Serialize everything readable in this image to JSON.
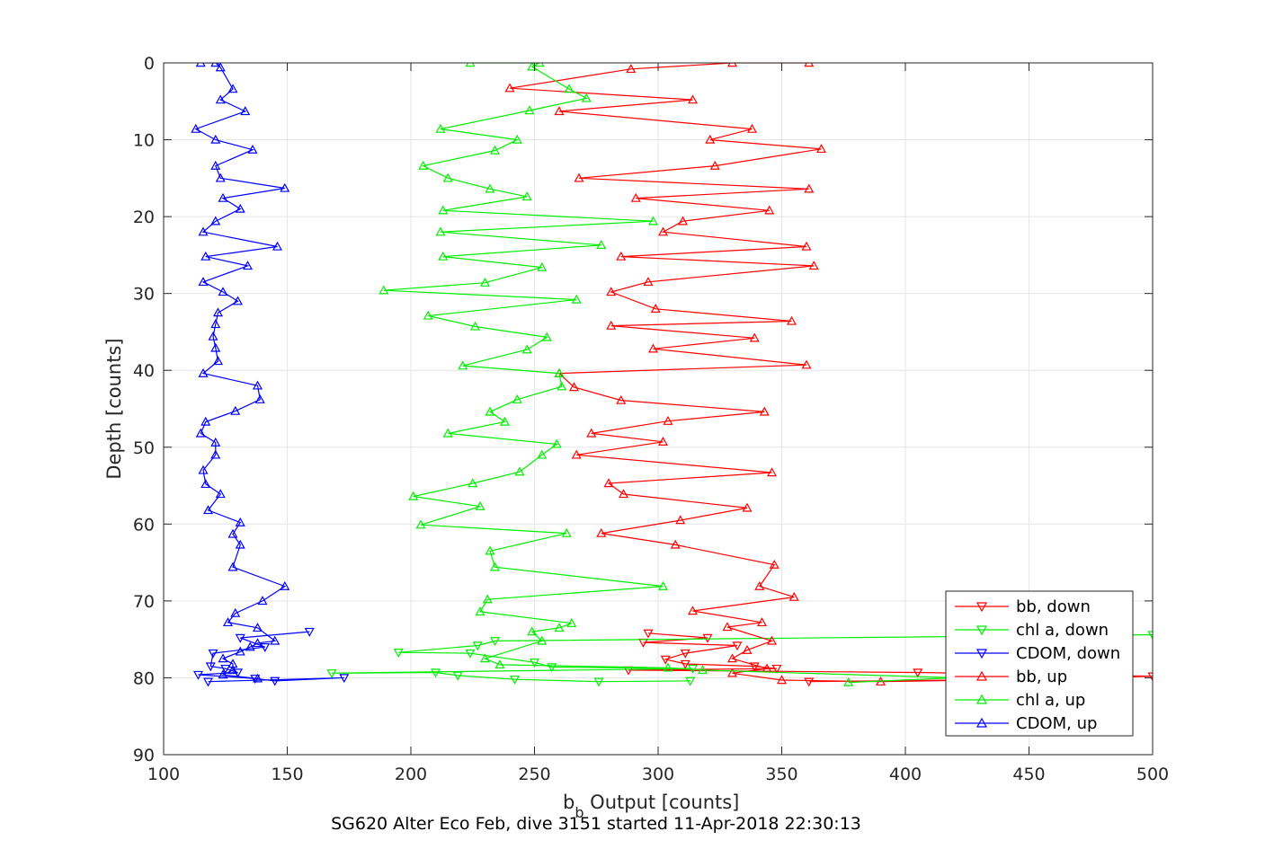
{
  "chart_data": {
    "type": "line",
    "title": "",
    "xlabel": "b",
    "xlabel_sub": "b",
    "xlabel_rest": " Output [counts]",
    "ylabel": "Depth [counts]",
    "caption": "SG620 Alter Eco Feb, dive 3151 started 11-Apr-2018 22:30:13",
    "xlim": [
      100,
      500
    ],
    "ylim": [
      0,
      90
    ],
    "y_reversed": true,
    "grid": true,
    "legend_position": "bottom-right",
    "x_ticks": [
      "100",
      "150",
      "200",
      "250",
      "300",
      "350",
      "400",
      "450",
      "500"
    ],
    "y_ticks": [
      "0",
      "10",
      "20",
      "30",
      "40",
      "50",
      "60",
      "70",
      "80",
      "90"
    ],
    "series": [
      {
        "name": "bb, down",
        "color": "#ff0000",
        "marker": "triangle-down",
        "points": [
          [
            296,
            74.2
          ],
          [
            320,
            74.8
          ],
          [
            294,
            75.4
          ],
          [
            332,
            75.8
          ],
          [
            311,
            76.8
          ],
          [
            303,
            77.6
          ],
          [
            311,
            78.2
          ],
          [
            339,
            78.5
          ],
          [
            348,
            78.8
          ],
          [
            288,
            79.0
          ],
          [
            405,
            79.3
          ],
          [
            500,
            79.8
          ],
          [
            450,
            80.2
          ],
          [
            361,
            80.5
          ]
        ]
      },
      {
        "name": "chl a, down",
        "color": "#00ee00",
        "marker": "triangle-down",
        "points": [
          [
            500,
            74.4
          ],
          [
            234,
            75.2
          ],
          [
            227,
            75.8
          ],
          [
            195,
            76.7
          ],
          [
            224,
            76.8
          ],
          [
            250,
            78.0
          ],
          [
            257,
            78.6
          ],
          [
            314,
            78.8
          ],
          [
            168,
            79.4
          ],
          [
            210,
            79.3
          ],
          [
            219,
            79.7
          ],
          [
            242,
            80.2
          ],
          [
            276,
            80.5
          ],
          [
            313,
            80.4
          ]
        ]
      },
      {
        "name": "CDOM, down",
        "color": "#0000ff",
        "marker": "triangle-down",
        "points": [
          [
            159,
            74.0
          ],
          [
            131,
            74.8
          ],
          [
            141,
            76.0
          ],
          [
            120,
            76.8
          ],
          [
            119,
            78.5
          ],
          [
            125,
            78.8
          ],
          [
            130,
            79.3
          ],
          [
            114,
            79.6
          ],
          [
            137,
            80.1
          ],
          [
            145,
            80.4
          ],
          [
            173,
            80.0
          ],
          [
            118,
            80.5
          ]
        ]
      },
      {
        "name": "bb, up",
        "color": "#ff0000",
        "marker": "triangle-up",
        "points": [
          [
            361,
            0
          ],
          [
            330,
            0
          ],
          [
            289,
            0.8
          ],
          [
            240,
            3.3
          ],
          [
            314,
            4.8
          ],
          [
            260,
            6.3
          ],
          [
            338,
            8.6
          ],
          [
            321,
            10
          ],
          [
            366,
            11.2
          ],
          [
            323,
            13.4
          ],
          [
            268,
            15
          ],
          [
            361,
            16.4
          ],
          [
            291,
            17.6
          ],
          [
            345,
            19.2
          ],
          [
            310,
            20.6
          ],
          [
            302,
            22
          ],
          [
            360,
            23.9
          ],
          [
            285,
            25.2
          ],
          [
            363,
            26.4
          ],
          [
            296,
            28.5
          ],
          [
            281,
            29.8
          ],
          [
            299,
            32
          ],
          [
            354,
            33.6
          ],
          [
            281,
            34.2
          ],
          [
            339,
            35.8
          ],
          [
            298,
            37.2
          ],
          [
            360,
            39.3
          ],
          [
            260,
            40.4
          ],
          [
            266,
            42.2
          ],
          [
            285,
            43.9
          ],
          [
            343,
            45.4
          ],
          [
            304,
            46.6
          ],
          [
            273,
            48.2
          ],
          [
            302,
            49.3
          ],
          [
            267,
            51
          ],
          [
            346,
            53.3
          ],
          [
            280,
            54.7
          ],
          [
            286,
            56.1
          ],
          [
            336,
            57.9
          ],
          [
            309,
            59.5
          ],
          [
            277,
            61.2
          ],
          [
            307,
            62.7
          ],
          [
            347,
            65.3
          ],
          [
            341,
            68.1
          ],
          [
            355,
            69.5
          ],
          [
            314,
            71.3
          ],
          [
            342,
            72.8
          ],
          [
            328,
            73.4
          ],
          [
            346,
            75.2
          ],
          [
            336,
            76.4
          ],
          [
            330,
            77.5
          ],
          [
            344,
            78.8
          ],
          [
            330,
            79.4
          ],
          [
            350,
            80.3
          ],
          [
            390,
            80.5
          ],
          [
            450,
            80.2
          ]
        ]
      },
      {
        "name": "chl a, up",
        "color": "#00ee00",
        "marker": "triangle-up",
        "points": [
          [
            224,
            0
          ],
          [
            252,
            0
          ],
          [
            249,
            0.5
          ],
          [
            264,
            3.4
          ],
          [
            271,
            4.6
          ],
          [
            248,
            6.2
          ],
          [
            212,
            8.6
          ],
          [
            243,
            10
          ],
          [
            234,
            11.4
          ],
          [
            205,
            13.4
          ],
          [
            215,
            15
          ],
          [
            232,
            16.4
          ],
          [
            247,
            17.4
          ],
          [
            213,
            19.2
          ],
          [
            298,
            20.6
          ],
          [
            212,
            22
          ],
          [
            277,
            23.7
          ],
          [
            213,
            25.2
          ],
          [
            253,
            26.6
          ],
          [
            230,
            28.6
          ],
          [
            189,
            29.6
          ],
          [
            267,
            30.8
          ],
          [
            207,
            32.9
          ],
          [
            226,
            34.3
          ],
          [
            255,
            35.7
          ],
          [
            247,
            37.3
          ],
          [
            221,
            39.4
          ],
          [
            260,
            40.4
          ],
          [
            261,
            42.1
          ],
          [
            243,
            43.8
          ],
          [
            232,
            45.4
          ],
          [
            238,
            46.7
          ],
          [
            215,
            48.2
          ],
          [
            259,
            49.6
          ],
          [
            253,
            51
          ],
          [
            244,
            53.2
          ],
          [
            225,
            54.7
          ],
          [
            201,
            56.4
          ],
          [
            228,
            57.7
          ],
          [
            204,
            60.1
          ],
          [
            263,
            61.2
          ],
          [
            232,
            63.5
          ],
          [
            234,
            65.6
          ],
          [
            302,
            68.1
          ],
          [
            231,
            69.8
          ],
          [
            228,
            71.4
          ],
          [
            265,
            72.9
          ],
          [
            260,
            73.5
          ],
          [
            249,
            74
          ],
          [
            253,
            75.2
          ],
          [
            230,
            77.5
          ],
          [
            236,
            78.3
          ],
          [
            304,
            78.7
          ],
          [
            318,
            79.0
          ],
          [
            420,
            80.0
          ],
          [
            377,
            80.6
          ]
        ]
      },
      {
        "name": "CDOM, up",
        "color": "#0000ff",
        "marker": "triangle-up",
        "points": [
          [
            115,
            0
          ],
          [
            121,
            0
          ],
          [
            123,
            0.6
          ],
          [
            128,
            3.4
          ],
          [
            123,
            4.8
          ],
          [
            133,
            6.3
          ],
          [
            113,
            8.6
          ],
          [
            121,
            10
          ],
          [
            136,
            11.3
          ],
          [
            121,
            13.4
          ],
          [
            123,
            15
          ],
          [
            149,
            16.3
          ],
          [
            124,
            17.6
          ],
          [
            131,
            19
          ],
          [
            121,
            20.6
          ],
          [
            116,
            22
          ],
          [
            146,
            23.9
          ],
          [
            117,
            25.2
          ],
          [
            134,
            26.4
          ],
          [
            116,
            28.5
          ],
          [
            124,
            29.8
          ],
          [
            130,
            31
          ],
          [
            122,
            32.5
          ],
          [
            121,
            34
          ],
          [
            120,
            35.6
          ],
          [
            121,
            37.1
          ],
          [
            122,
            38.8
          ],
          [
            116,
            40.4
          ],
          [
            138,
            42
          ],
          [
            139,
            43.8
          ],
          [
            129,
            45.3
          ],
          [
            117,
            46.7
          ],
          [
            115,
            48.2
          ],
          [
            121,
            49.4
          ],
          [
            121,
            51
          ],
          [
            116,
            53
          ],
          [
            117,
            54.8
          ],
          [
            123,
            56.1
          ],
          [
            118,
            58.2
          ],
          [
            131,
            59.8
          ],
          [
            128,
            61.3
          ],
          [
            131,
            62.7
          ],
          [
            128,
            65.6
          ],
          [
            149,
            68.1
          ],
          [
            140,
            70
          ],
          [
            129,
            71.6
          ],
          [
            126,
            72.8
          ],
          [
            138,
            73.5
          ],
          [
            145,
            75.2
          ],
          [
            138,
            75.5
          ],
          [
            135,
            76
          ],
          [
            131,
            76.6
          ],
          [
            124,
            77.5
          ],
          [
            128,
            78.2
          ],
          [
            128,
            79
          ],
          [
            124,
            79.6
          ],
          [
            138,
            80.1
          ]
        ]
      }
    ]
  }
}
